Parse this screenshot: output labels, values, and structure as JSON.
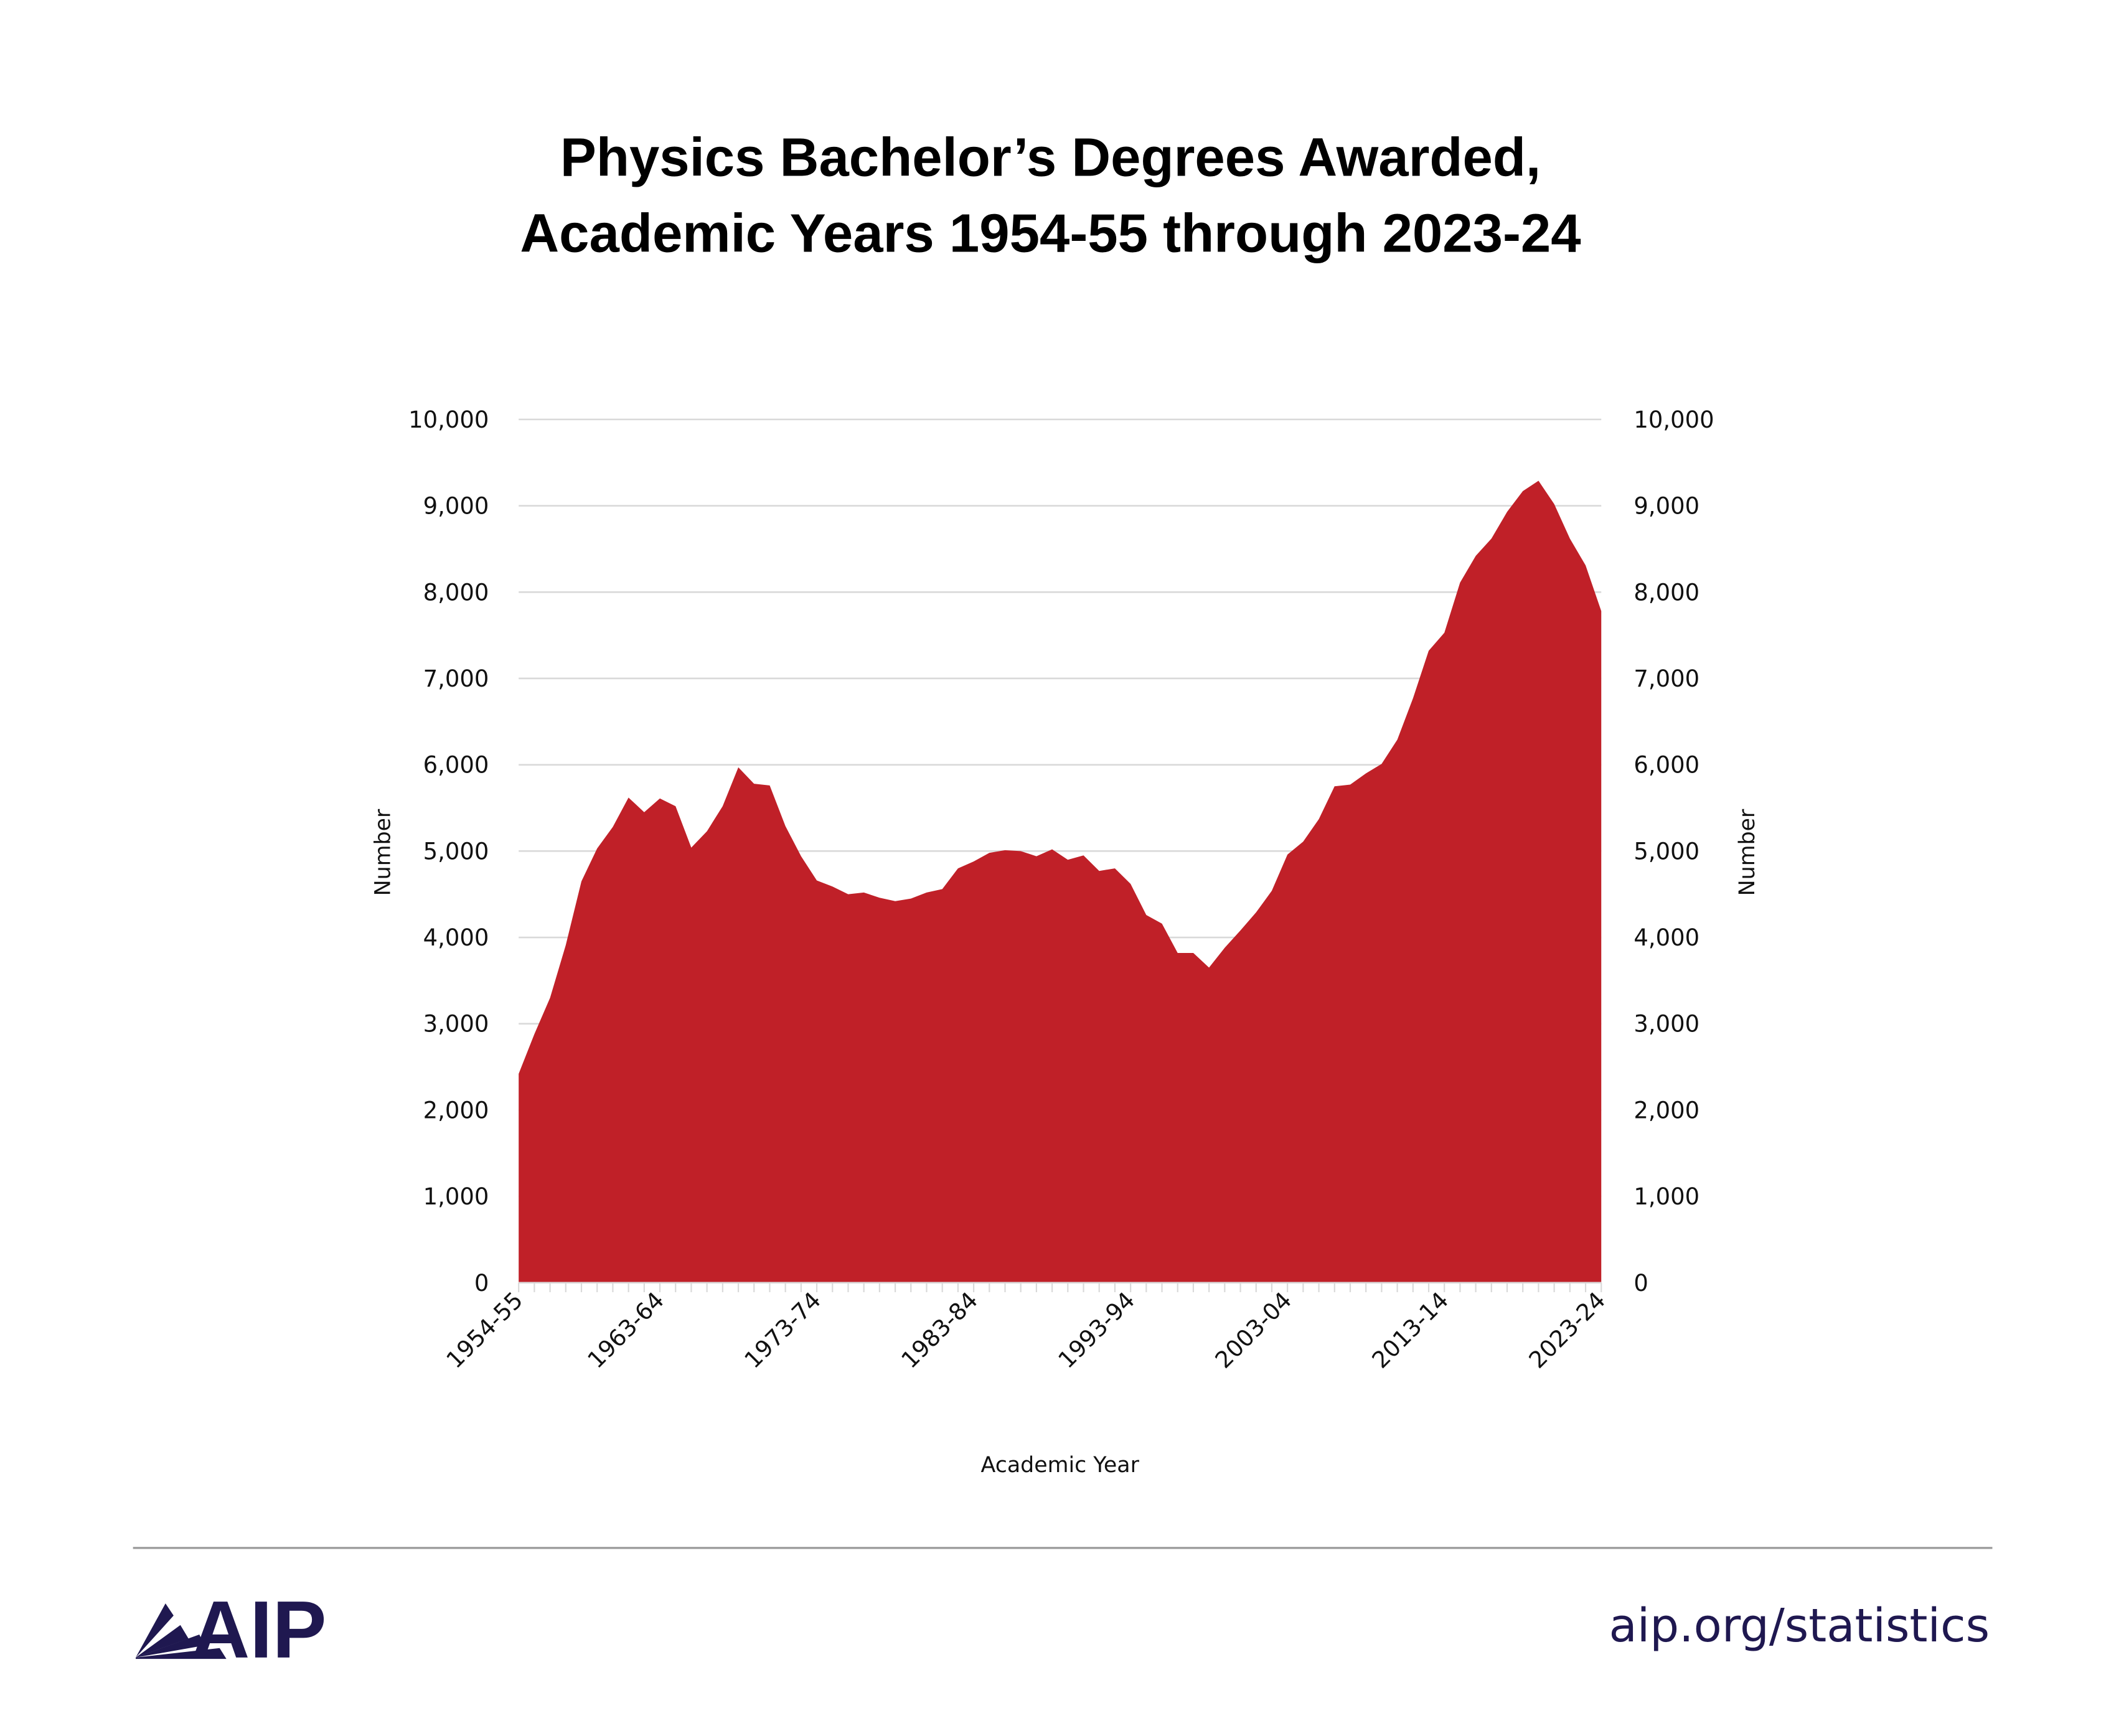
{
  "chart_data": {
    "type": "area",
    "title_lines": [
      "Physics Bachelor’s Degrees Awarded,",
      "Academic Years 1954-55 through 2023-24"
    ],
    "xlabel": "Academic Year",
    "ylabel": "Number",
    "y2label": "Number",
    "ylim": [
      0,
      10000
    ],
    "yticks": [
      0,
      1000,
      2000,
      3000,
      4000,
      5000,
      6000,
      7000,
      8000,
      9000,
      10000
    ],
    "ytick_labels": [
      "0",
      "1,000",
      "2,000",
      "3,000",
      "4,000",
      "5,000",
      "6,000",
      "7,000",
      "8,000",
      "9,000",
      "10,000"
    ],
    "xtick_labels": [
      "1954-55",
      "1963-64",
      "1973-74",
      "1983-84",
      "1993-94",
      "2003-04",
      "2013-14",
      "2023-24"
    ],
    "xtick_label_indices": [
      0,
      9,
      19,
      29,
      39,
      49,
      59,
      69
    ],
    "grid": true,
    "fill_color": "#c02028",
    "x_start_year": 1954,
    "values": [
      2420,
      2880,
      3300,
      3910,
      4650,
      5030,
      5280,
      5620,
      5450,
      5610,
      5520,
      5040,
      5230,
      5520,
      5970,
      5780,
      5760,
      5290,
      4940,
      4660,
      4590,
      4500,
      4520,
      4460,
      4420,
      4450,
      4520,
      4560,
      4800,
      4880,
      4980,
      5010,
      5000,
      4940,
      5020,
      4900,
      4950,
      4770,
      4800,
      4620,
      4260,
      4160,
      3820,
      3820,
      3650,
      3880,
      4080,
      4290,
      4540,
      4960,
      5110,
      5370,
      5750,
      5770,
      5900,
      6010,
      6290,
      6770,
      7320,
      7530,
      8110,
      8420,
      8620,
      8930,
      9170,
      9290,
      9020,
      8620,
      8310,
      7780
    ]
  },
  "footer": {
    "logo_text": "AIP",
    "url": "aip.org/statistics",
    "brand_color": "#1f1850"
  }
}
